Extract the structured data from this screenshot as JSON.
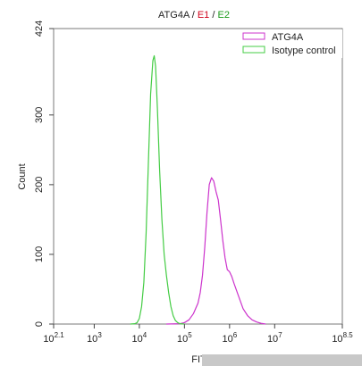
{
  "chart_data": {
    "type": "line",
    "title": {
      "prefix": "ATG4A / ",
      "e1": "E1",
      "sep": " / ",
      "e2": "E2"
    },
    "title_colors": {
      "prefix": "#222222",
      "e1": "#d0021b",
      "e2": "#1a9a1a"
    },
    "xlabel": "FITC-A",
    "ylabel": "Count",
    "x_scale": "log10",
    "xlim": [
      2.1,
      8.5
    ],
    "ylim": [
      0,
      424
    ],
    "x_ticks": [
      {
        "exp": "2.1",
        "value": 2.1
      },
      {
        "exp": "3",
        "value": 3
      },
      {
        "exp": "4",
        "value": 4
      },
      {
        "exp": "5",
        "value": 5
      },
      {
        "exp": "6",
        "value": 6
      },
      {
        "exp": "7",
        "value": 7
      },
      {
        "exp": "8.5",
        "value": 8.5
      }
    ],
    "y_ticks": [
      0,
      100,
      200,
      300,
      424
    ],
    "legend_position": "top-right",
    "series": [
      {
        "name": "ATG4A",
        "color": "#cc33cc",
        "points": [
          [
            4.6,
            0
          ],
          [
            4.9,
            0.5
          ],
          [
            5.0,
            2
          ],
          [
            5.1,
            6
          ],
          [
            5.2,
            15
          ],
          [
            5.3,
            30
          ],
          [
            5.35,
            45
          ],
          [
            5.4,
            70
          ],
          [
            5.45,
            110
          ],
          [
            5.5,
            160
          ],
          [
            5.55,
            200
          ],
          [
            5.6,
            210
          ],
          [
            5.65,
            205
          ],
          [
            5.7,
            190
          ],
          [
            5.75,
            178
          ],
          [
            5.8,
            150
          ],
          [
            5.85,
            120
          ],
          [
            5.9,
            95
          ],
          [
            5.95,
            78
          ],
          [
            6.0,
            75
          ],
          [
            6.05,
            68
          ],
          [
            6.1,
            58
          ],
          [
            6.2,
            40
          ],
          [
            6.3,
            22
          ],
          [
            6.4,
            12
          ],
          [
            6.5,
            6
          ],
          [
            6.6,
            3
          ],
          [
            6.7,
            1
          ],
          [
            6.8,
            0
          ]
        ]
      },
      {
        "name": "Isotype control",
        "color": "#44cc44",
        "points": [
          [
            3.8,
            0
          ],
          [
            3.9,
            0.5
          ],
          [
            3.95,
            2
          ],
          [
            4.0,
            8
          ],
          [
            4.05,
            25
          ],
          [
            4.1,
            60
          ],
          [
            4.15,
            130
          ],
          [
            4.2,
            230
          ],
          [
            4.25,
            330
          ],
          [
            4.3,
            378
          ],
          [
            4.33,
            385
          ],
          [
            4.36,
            370
          ],
          [
            4.4,
            310
          ],
          [
            4.45,
            220
          ],
          [
            4.5,
            150
          ],
          [
            4.55,
            100
          ],
          [
            4.6,
            70
          ],
          [
            4.65,
            45
          ],
          [
            4.7,
            25
          ],
          [
            4.75,
            12
          ],
          [
            4.8,
            5
          ],
          [
            4.85,
            2
          ],
          [
            4.9,
            0.5
          ],
          [
            5.0,
            0
          ]
        ]
      }
    ]
  }
}
